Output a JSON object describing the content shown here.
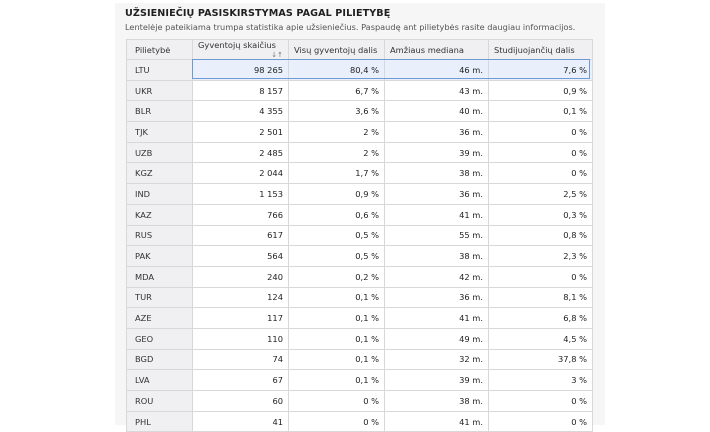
{
  "header": {
    "title": "UŽSIENIEČIŲ PASISKIRSTYMAS PAGAL PILIETYBĘ",
    "subtitle": "Lentelėje pateikiama trumpa statistika apie užsieniečius. Paspaudę ant pilietybės rasite daugiau informacijos."
  },
  "table": {
    "columns": [
      "Pilietybė",
      "Gyventojų skaičius",
      "Visų gyventojų dalis",
      "Amžiaus mediana",
      "Studijuojančių dalis"
    ],
    "sort_icon": "↓↑",
    "rows": [
      {
        "code": "LTU",
        "count": "98 265",
        "share": "80,4 %",
        "median": "46 m.",
        "students": "7,6 %"
      },
      {
        "code": "UKR",
        "count": "8 157",
        "share": "6,7 %",
        "median": "43 m.",
        "students": "0,9 %"
      },
      {
        "code": "BLR",
        "count": "4 355",
        "share": "3,6 %",
        "median": "40 m.",
        "students": "0,1 %"
      },
      {
        "code": "TJK",
        "count": "2 501",
        "share": "2 %",
        "median": "36 m.",
        "students": "0 %"
      },
      {
        "code": "UZB",
        "count": "2 485",
        "share": "2 %",
        "median": "39 m.",
        "students": "0 %"
      },
      {
        "code": "KGZ",
        "count": "2 044",
        "share": "1,7 %",
        "median": "38 m.",
        "students": "0 %"
      },
      {
        "code": "IND",
        "count": "1 153",
        "share": "0,9 %",
        "median": "36 m.",
        "students": "2,5 %"
      },
      {
        "code": "KAZ",
        "count": "766",
        "share": "0,6 %",
        "median": "41 m.",
        "students": "0,3 %"
      },
      {
        "code": "RUS",
        "count": "617",
        "share": "0,5 %",
        "median": "55 m.",
        "students": "0,8 %"
      },
      {
        "code": "PAK",
        "count": "564",
        "share": "0,5 %",
        "median": "38 m.",
        "students": "2,3 %"
      },
      {
        "code": "MDA",
        "count": "240",
        "share": "0,2 %",
        "median": "42 m.",
        "students": "0 %"
      },
      {
        "code": "TUR",
        "count": "124",
        "share": "0,1 %",
        "median": "36 m.",
        "students": "8,1 %"
      },
      {
        "code": "AZE",
        "count": "117",
        "share": "0,1 %",
        "median": "41 m.",
        "students": "6,8 %"
      },
      {
        "code": "GEO",
        "count": "110",
        "share": "0,1 %",
        "median": "49 m.",
        "students": "4,5 %"
      },
      {
        "code": "BGD",
        "count": "74",
        "share": "0,1 %",
        "median": "32 m.",
        "students": "37,8 %"
      },
      {
        "code": "LVA",
        "count": "67",
        "share": "0,1 %",
        "median": "39 m.",
        "students": "3 %"
      },
      {
        "code": "ROU",
        "count": "60",
        "share": "0 %",
        "median": "38 m.",
        "students": "0 %"
      },
      {
        "code": "PHL",
        "count": "41",
        "share": "0 %",
        "median": "41 m.",
        "students": "0 %"
      }
    ]
  }
}
